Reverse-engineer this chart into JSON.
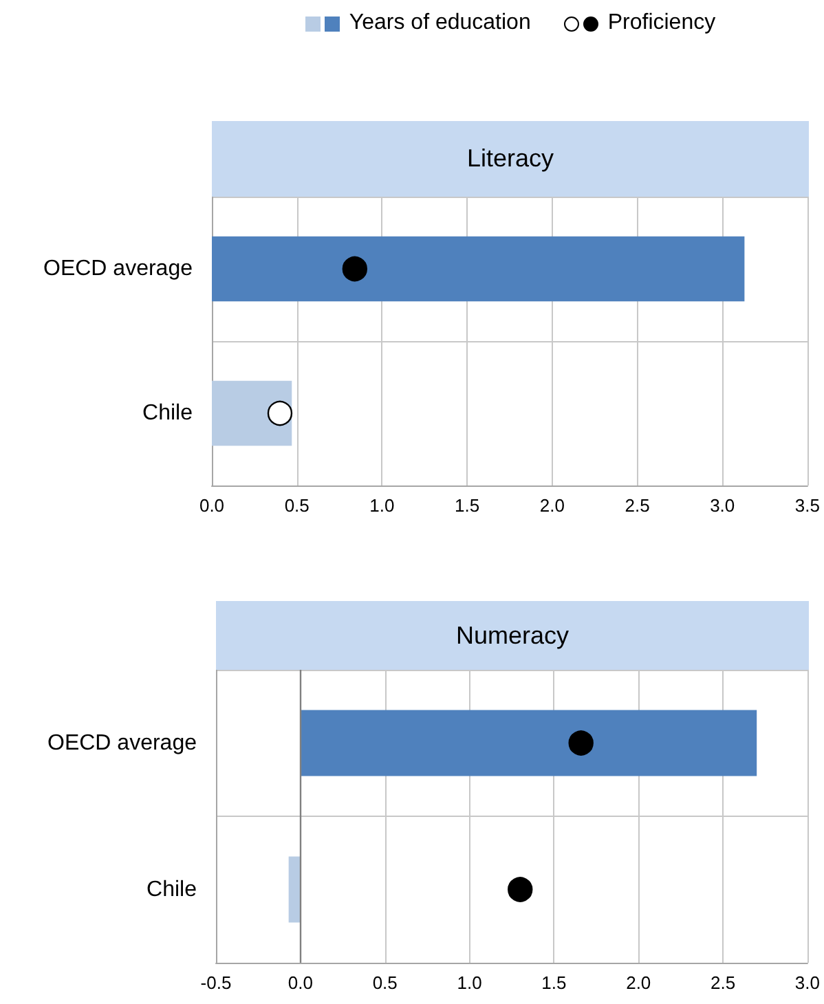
{
  "chart_data": [
    {
      "type": "bar",
      "orientation": "horizontal",
      "title": "Literacy",
      "categories": [
        "OECD average",
        "Chile"
      ],
      "legend": "top",
      "grid": true,
      "series": [
        {
          "name": "Years of education",
          "colors": [
            "#4f81bd",
            "#b8cce4"
          ],
          "values": [
            3.13,
            0.47
          ]
        },
        {
          "name": "Proficiency",
          "type": "scatter",
          "marker": "circle",
          "colors": [
            "#000000",
            "#ffffff"
          ],
          "values": [
            0.84,
            0.4
          ]
        }
      ],
      "xlim": [
        0,
        3.5
      ],
      "xticks": [
        {
          "value": 0,
          "label": "0.0"
        },
        {
          "value": 0.5,
          "label": "0.5"
        },
        {
          "value": 1,
          "label": "1.0"
        },
        {
          "value": 1.5,
          "label": "1.5"
        },
        {
          "value": 2,
          "label": "2.0"
        },
        {
          "value": 2.5,
          "label": "2.5"
        },
        {
          "value": 3,
          "label": "3.0"
        },
        {
          "value": 3.5,
          "label": "3.5"
        }
      ]
    },
    {
      "type": "bar",
      "orientation": "horizontal",
      "title": "Numeracy",
      "categories": [
        "OECD average",
        "Chile"
      ],
      "grid": true,
      "series": [
        {
          "colors": [
            "#4f81bd",
            "#b8cce4"
          ],
          "values": [
            2.7,
            -0.07
          ]
        },
        {
          "type": "scatter",
          "marker": "circle",
          "colors": [
            "#000000",
            "#000000"
          ],
          "values": [
            1.66,
            1.3
          ]
        }
      ],
      "xlim": [
        -0.5,
        3
      ],
      "xticks": [
        {
          "value": -0.5,
          "label": "-0.5"
        },
        {
          "value": 0,
          "label": "0.0"
        },
        {
          "value": 0.5,
          "label": "0.5"
        },
        {
          "value": 1,
          "label": "1.0"
        },
        {
          "value": 1.5,
          "label": "1.5"
        },
        {
          "value": 2,
          "label": "2.0"
        },
        {
          "value": 2.5,
          "label": "2.5"
        },
        {
          "value": 3,
          "label": "3.0"
        }
      ],
      "ref_lines": [
        {
          "axis": "x",
          "value": 0,
          "color": "#808080"
        }
      ]
    }
  ]
}
